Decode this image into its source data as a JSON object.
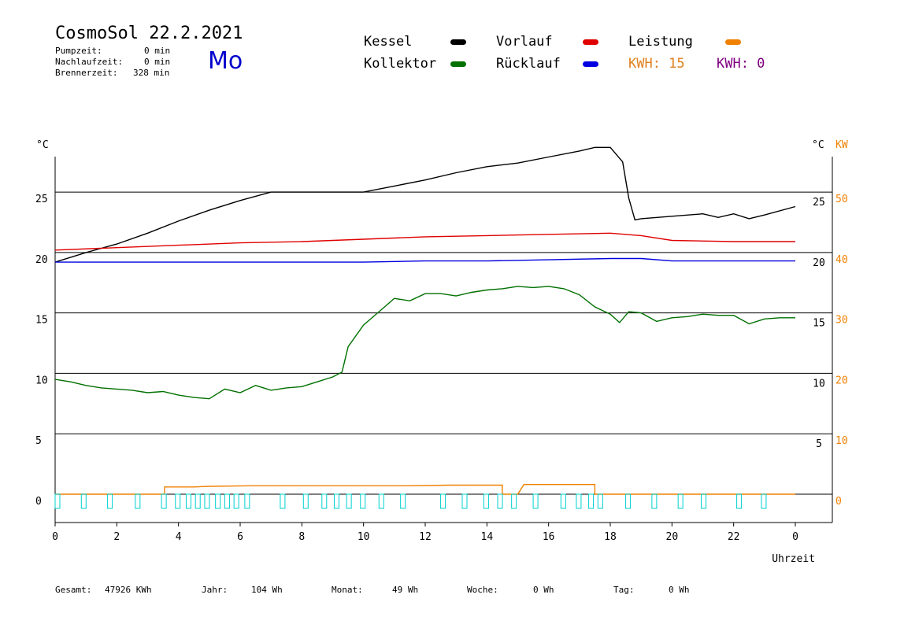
{
  "header": {
    "app_name": "CosmoSol",
    "date": "22.2.2021",
    "weekday": "Mo",
    "pumpzeit_label": "Pumpzeit:",
    "pumpzeit_value": "0 min",
    "nachlauf_label": "Nachlaufzeit:",
    "nachlauf_value": "0 min",
    "brenner_label": "Brennerzeit:",
    "brenner_value": "328 min"
  },
  "legend": {
    "kessel": "Kessel",
    "kollektor": "Kollektor",
    "vorlauf": "Vorlauf",
    "ruecklauf": "Rücklauf",
    "leistung": "Leistung",
    "kwh1": "KWH: 15",
    "kwh2": "KWH: 0"
  },
  "colors": {
    "kessel": "#000000",
    "kollektor": "#007000",
    "vorlauf": "#e00000",
    "ruecklauf": "#0000e0",
    "leistung": "#f08000",
    "kwh1": "#e08020",
    "kwh2": "#800080",
    "pump": "#00d0d0"
  },
  "footer": {
    "gesamt_label": "Gesamt:",
    "gesamt_value": "47926 KWh",
    "jahr_label": "Jahr:",
    "jahr_value": "104 Wh",
    "monat_label": "Monat:",
    "monat_value": "49 Wh",
    "woche_label": "Woche:",
    "woche_value": "0 Wh",
    "tag_label": "Tag:",
    "tag_value": "0 Wh"
  },
  "chart_data": {
    "type": "line",
    "xlabel": "Uhrzeit",
    "y_unit_left": "°C",
    "y_unit_right": "°C",
    "y2_unit": "KW",
    "x_tick_labels": [
      "0",
      "2",
      "4",
      "6",
      "8",
      "10",
      "12",
      "14",
      "16",
      "18",
      "20",
      "22",
      "0"
    ],
    "y_tick_labels_left": [
      "0",
      "5",
      "10",
      "15",
      "20",
      "25"
    ],
    "y_tick_labels_right": [
      "5",
      "10",
      "15",
      "20",
      "25"
    ],
    "y2_tick_labels": [
      "0",
      "10",
      "20",
      "30",
      "40",
      "50"
    ],
    "xlim": [
      0,
      24
    ],
    "ylim": [
      0,
      28
    ],
    "y2lim": [
      0,
      56
    ],
    "gridlines_y": [
      5,
      10,
      15,
      20,
      25
    ],
    "series": [
      {
        "name": "Kessel",
        "x": [
          0,
          1,
          2,
          3,
          4,
          5,
          6,
          7,
          8,
          9,
          10,
          11,
          12,
          13,
          14,
          15,
          16,
          17,
          17.5,
          18,
          18.4,
          18.6,
          18.8,
          19,
          20,
          21,
          21.5,
          22,
          22.5,
          23,
          24
        ],
        "y": [
          19.2,
          20.0,
          20.7,
          21.6,
          22.6,
          23.5,
          24.3,
          25.0,
          25.0,
          25.0,
          25.0,
          25.5,
          26.0,
          26.6,
          27.1,
          27.4,
          27.9,
          28.4,
          28.7,
          28.7,
          27.5,
          24.5,
          22.7,
          22.8,
          23.0,
          23.2,
          22.9,
          23.2,
          22.8,
          23.1,
          23.8
        ]
      },
      {
        "name": "Vorlauf",
        "x": [
          0,
          2,
          4,
          6,
          8,
          10,
          12,
          14,
          16,
          18,
          19,
          20,
          22,
          24
        ],
        "y": [
          20.2,
          20.4,
          20.6,
          20.8,
          20.9,
          21.1,
          21.3,
          21.4,
          21.5,
          21.6,
          21.4,
          21.0,
          20.9,
          20.9
        ]
      },
      {
        "name": "Rücklauf",
        "x": [
          0,
          2,
          4,
          6,
          8,
          10,
          12,
          14,
          16,
          18,
          19,
          20,
          22,
          24
        ],
        "y": [
          19.2,
          19.2,
          19.2,
          19.2,
          19.2,
          19.2,
          19.3,
          19.3,
          19.4,
          19.5,
          19.5,
          19.3,
          19.3,
          19.3
        ]
      },
      {
        "name": "Kollektor",
        "x": [
          0,
          0.5,
          1,
          1.5,
          2,
          2.5,
          3,
          3.5,
          4,
          4.5,
          5,
          5.5,
          6,
          6.5,
          7,
          7.5,
          8,
          8.5,
          9,
          9.3,
          9.5,
          10,
          10.5,
          11,
          11.5,
          12,
          12.5,
          13,
          13.5,
          14,
          14.5,
          15,
          15.5,
          16,
          16.5,
          17,
          17.5,
          18,
          18.3,
          18.6,
          19,
          19.5,
          20,
          20.5,
          21,
          21.5,
          22,
          22.5,
          23,
          23.5,
          24
        ],
        "y": [
          9.5,
          9.3,
          9.0,
          8.8,
          8.7,
          8.6,
          8.4,
          8.5,
          8.2,
          8.0,
          7.9,
          8.7,
          8.4,
          9.0,
          8.6,
          8.8,
          8.9,
          9.3,
          9.7,
          10.1,
          12.2,
          14.0,
          15.1,
          16.2,
          16.0,
          16.6,
          16.6,
          16.4,
          16.7,
          16.9,
          17.0,
          17.2,
          17.1,
          17.2,
          17.0,
          16.5,
          15.5,
          14.9,
          14.2,
          15.1,
          15.0,
          14.3,
          14.6,
          14.7,
          14.9,
          14.8,
          14.8,
          14.1,
          14.5,
          14.6,
          14.6
        ]
      },
      {
        "name": "Leistung",
        "x": [
          0,
          3.55,
          3.55,
          4.5,
          5,
          6.3,
          8,
          11.3,
          12.8,
          14.5,
          14.5,
          15,
          15.2,
          17.5,
          17.5,
          18,
          24
        ],
        "y": [
          0,
          0,
          1.2,
          1.2,
          1.3,
          1.4,
          1.4,
          1.4,
          1.5,
          1.5,
          0,
          0,
          1.6,
          1.6,
          0,
          0,
          0
        ]
      }
    ]
  }
}
